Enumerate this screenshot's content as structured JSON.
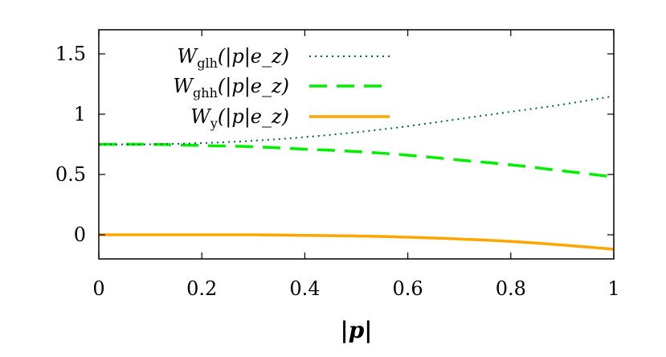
{
  "chart_data": {
    "type": "line",
    "title": "",
    "xlabel": "|p|",
    "ylabel": "",
    "xlim": [
      0,
      1
    ],
    "ylim": [
      -0.2,
      1.7
    ],
    "x_ticks": [
      0,
      0.2,
      0.4,
      0.6,
      0.8,
      1
    ],
    "x_tick_labels": [
      "0",
      "0.2",
      "0.4",
      "0.6",
      "0.8",
      "1"
    ],
    "y_ticks": [
      0,
      0.5,
      1,
      1.5
    ],
    "y_tick_labels": [
      "0",
      "0.5",
      "1",
      "1.5"
    ],
    "grid": false,
    "legend_position": "top-left",
    "series": [
      {
        "name": "W_glh(|p|e_z)",
        "color": "#006050",
        "dash": "dotted",
        "x": [
          0,
          0.1,
          0.2,
          0.3,
          0.4,
          0.5,
          0.6,
          0.7,
          0.8,
          0.9,
          1.0
        ],
        "y": [
          0.75,
          0.75,
          0.76,
          0.78,
          0.81,
          0.85,
          0.9,
          0.96,
          1.02,
          1.08,
          1.15
        ]
      },
      {
        "name": "W_ghh(|p|e_z)",
        "color": "#00ee00",
        "dash": "dashed",
        "x": [
          0,
          0.1,
          0.2,
          0.3,
          0.4,
          0.5,
          0.6,
          0.7,
          0.8,
          0.9,
          1.0
        ],
        "y": [
          0.75,
          0.75,
          0.74,
          0.73,
          0.71,
          0.69,
          0.66,
          0.62,
          0.58,
          0.53,
          0.48
        ]
      },
      {
        "name": "W_y(|p|e_z)",
        "color": "#ffa500",
        "dash": "solid",
        "x": [
          0,
          0.1,
          0.2,
          0.3,
          0.4,
          0.5,
          0.6,
          0.7,
          0.8,
          0.9,
          1.0
        ],
        "y": [
          0,
          0,
          0,
          0,
          -0.005,
          -0.01,
          -0.02,
          -0.035,
          -0.055,
          -0.085,
          -0.12
        ]
      }
    ],
    "legend": {
      "entries": [
        {
          "symbol": "W",
          "subscript": "glh",
          "suffix": "(|p|e_z)"
        },
        {
          "symbol": "W",
          "subscript": "ghh",
          "suffix": "(|p|e_z)"
        },
        {
          "symbol": "W",
          "subscript": "y",
          "suffix": "(|p|e_z)"
        }
      ]
    }
  }
}
